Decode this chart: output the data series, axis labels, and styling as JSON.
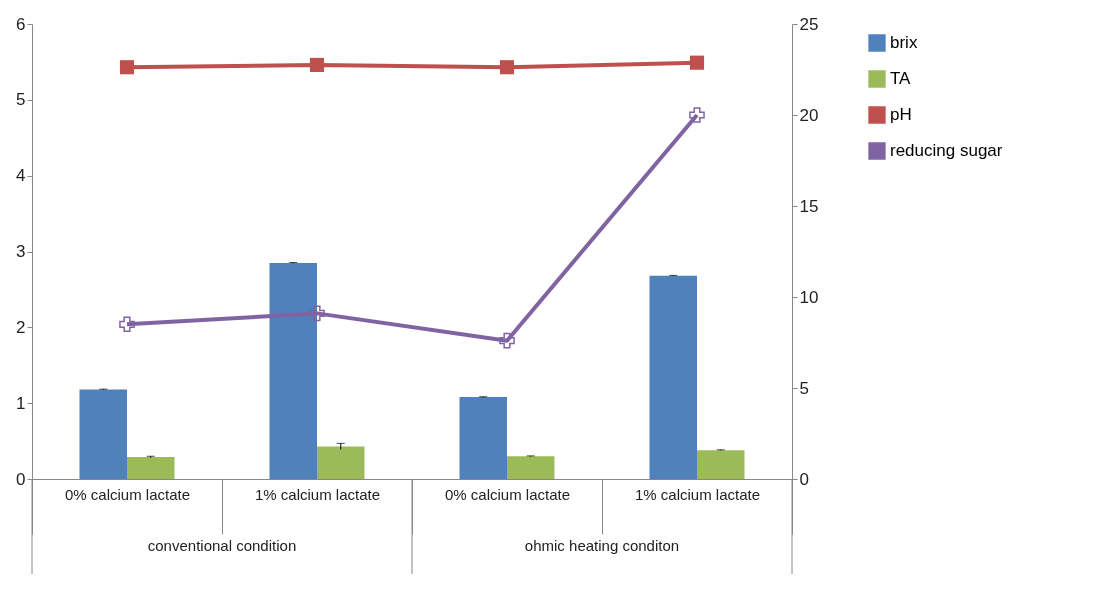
{
  "chart_data": {
    "type": "bar",
    "categories": [
      "0% calcium lactate",
      "1% calcium lactate",
      "0% calcium lactate",
      "1% calcium lactate"
    ],
    "series": [
      {
        "name": "brix",
        "color": "#4f81bd",
        "values": [
          1.18,
          2.85,
          1.08,
          2.68
        ],
        "errors": [
          0.005,
          0.005,
          0.005,
          0.005
        ]
      },
      {
        "name": "TA",
        "color": "#9bbb59",
        "values": [
          0.29,
          0.43,
          0.3,
          0.38
        ],
        "errors": [
          0.01,
          0.04,
          0.005,
          0.005
        ]
      },
      {
        "name": "pH",
        "type": "line",
        "color": "#c0504d",
        "marker": "square",
        "values": [
          5.43,
          5.46,
          5.43,
          5.49
        ]
      },
      {
        "name": "reducing sugar",
        "type": "line",
        "axis": "y2",
        "color": "#8064a2",
        "marker": "cross",
        "values": [
          8.5,
          9.1,
          7.6,
          20.0
        ]
      }
    ],
    "annotations": [
      "conventional condition",
      "ohmic heating conditon"
    ],
    "ylim": [
      0,
      6
    ],
    "yticks": [
      0,
      1,
      2,
      3,
      4,
      5,
      6
    ],
    "y2lim": [
      0,
      25
    ],
    "y2ticks": [
      0,
      5,
      10,
      15,
      20,
      25
    ],
    "grid": false,
    "legend": "right"
  }
}
